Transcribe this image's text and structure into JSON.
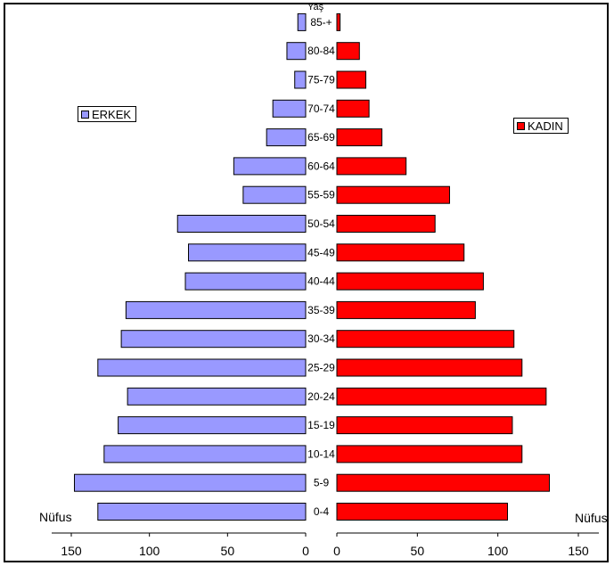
{
  "chart_data": {
    "type": "bar",
    "orientation": "horizontal-pyramid",
    "category_label": "Yaş",
    "categories": [
      "0-4",
      "5-9",
      "10-14",
      "15-19",
      "20-24",
      "25-29",
      "30-34",
      "35-39",
      "40-44",
      "45-49",
      "50-54",
      "55-59",
      "60-64",
      "65-69",
      "70-74",
      "75-79",
      "80-84",
      "85-+"
    ],
    "series": [
      {
        "name": "ERKEK",
        "color": "#9999ff",
        "values": [
          133,
          148,
          129,
          120,
          114,
          133,
          118,
          115,
          77,
          75,
          82,
          40,
          46,
          25,
          21,
          7,
          12,
          5
        ]
      },
      {
        "name": "KADIN",
        "color": "#ff0000",
        "values": [
          106,
          132,
          115,
          109,
          130,
          115,
          110,
          86,
          91,
          79,
          61,
          70,
          43,
          28,
          20,
          18,
          14,
          2
        ]
      }
    ],
    "xlabel_left": "Nüfus",
    "xlabel_right": "Nüfus",
    "xticks_left": [
      "150",
      "100",
      "50",
      "0"
    ],
    "xticks_right": [
      "0",
      "50",
      "100",
      "150"
    ],
    "xlim": [
      0,
      150
    ],
    "legend": {
      "erkek_label": "ERKEK",
      "kadin_label": "KADIN",
      "erkek_position": "left",
      "kadin_position": "right"
    }
  }
}
